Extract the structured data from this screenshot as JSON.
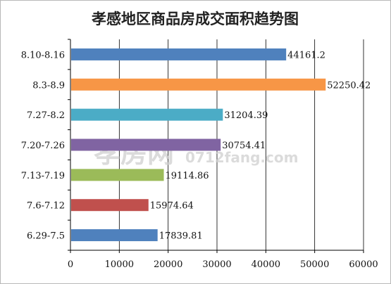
{
  "chart_data": {
    "type": "bar",
    "orientation": "horizontal",
    "title": "孝感地区商品房成交面积趋势图",
    "categories": [
      "8.10-8.16",
      "8.3-8.9",
      "7.27-8.2",
      "7.20-7.26",
      "7.13-7.19",
      "7.6-7.12",
      "6.29-7.5"
    ],
    "values": [
      44161.2,
      52250.42,
      31204.39,
      30754.41,
      19114.86,
      15974.64,
      17839.81
    ],
    "value_labels": [
      "44161.2",
      "52250.42",
      "31204.39",
      "30754.41",
      "19114.86",
      "15974.64",
      "17839.81"
    ],
    "bar_colors": [
      "#4f81bd",
      "#f79646",
      "#4bacc6",
      "#8064a2",
      "#9bbb59",
      "#c0504d",
      "#4f81bd"
    ],
    "x_ticks": [
      "0",
      "10000",
      "20000",
      "30000",
      "40000",
      "50000",
      "60000"
    ],
    "xlim": [
      0,
      60000
    ],
    "xlabel": "",
    "ylabel": "",
    "grid": "vertical",
    "legend": "none"
  },
  "watermark": {
    "text_cn": "孝房网",
    "text_url": "0712fang.com"
  }
}
